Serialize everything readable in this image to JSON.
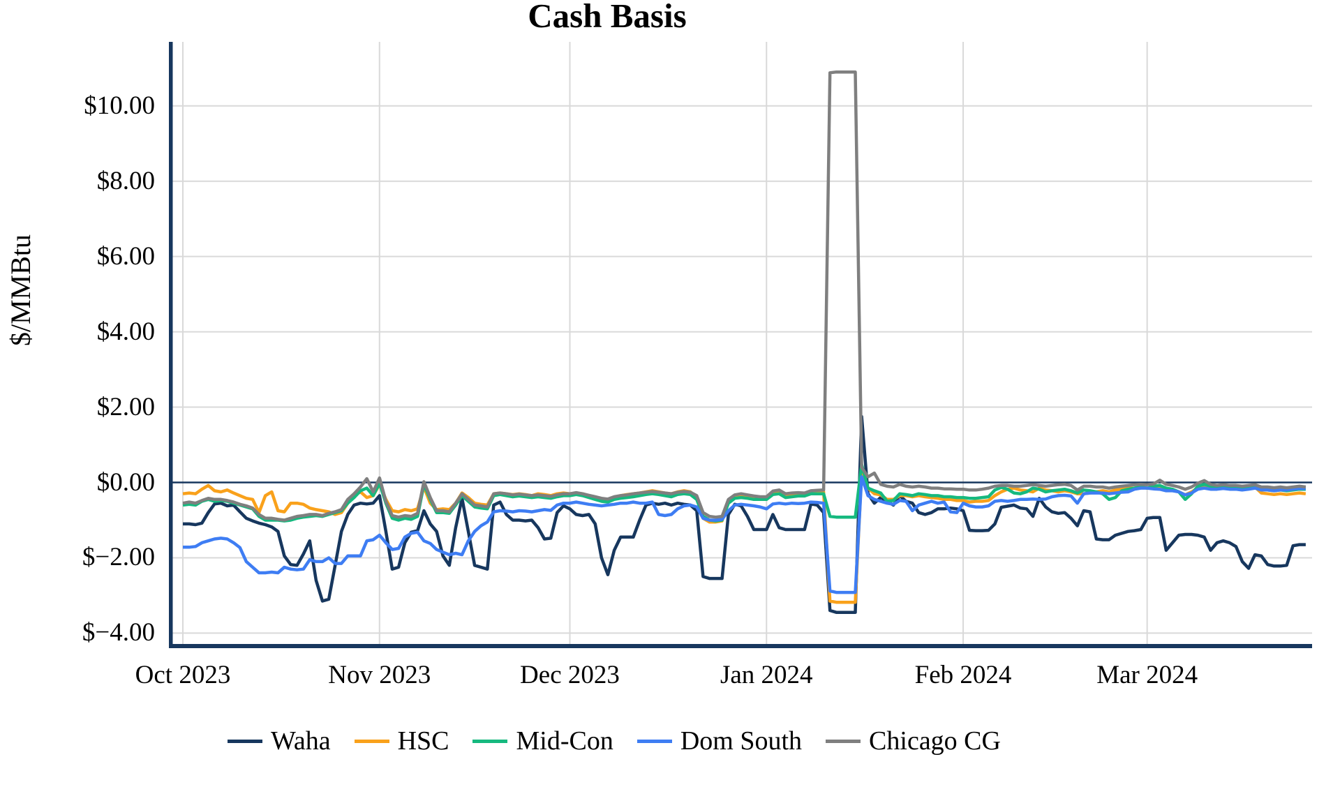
{
  "chart_data": {
    "type": "line",
    "title": "Cash Basis",
    "ylabel": "$/MMBtu",
    "xlabel": "",
    "grid": true,
    "legend_position": "bottom",
    "ylim": [
      -4.4,
      11.7
    ],
    "x_domain_days": [
      -2.2,
      178
    ],
    "x_start": "2023-10-01",
    "x_frequency": "daily",
    "background": "#ffffff",
    "gridline_color": "#d9d9d9",
    "axis_color": "#17375e",
    "zero_line": {
      "value": 0,
      "color": "#17375e"
    },
    "y_ticks": [
      {
        "value": -4,
        "label": "$−4.00"
      },
      {
        "value": -2,
        "label": "$−2.00"
      },
      {
        "value": 0,
        "label": "$0.00"
      },
      {
        "value": 2,
        "label": "$2.00"
      },
      {
        "value": 4,
        "label": "$4.00"
      },
      {
        "value": 6,
        "label": "$6.00"
      },
      {
        "value": 8,
        "label": "$8.00"
      },
      {
        "value": 10,
        "label": "$10.00"
      }
    ],
    "x_ticks": [
      {
        "day": 0,
        "label": "Oct 2023"
      },
      {
        "day": 31,
        "label": "Nov 2023"
      },
      {
        "day": 61,
        "label": "Dec 2023"
      },
      {
        "day": 92,
        "label": "Jan 2024"
      },
      {
        "day": 123,
        "label": "Feb 2024"
      },
      {
        "day": 152,
        "label": "Mar 2024"
      }
    ],
    "series": [
      {
        "name": "Waha",
        "color": "#17375e",
        "values": [
          -1.1,
          -1.1,
          -1.12,
          -1.08,
          -0.8,
          -0.57,
          -0.55,
          -0.62,
          -0.6,
          -0.78,
          -0.95,
          -1.02,
          -1.08,
          -1.12,
          -1.18,
          -1.3,
          -1.95,
          -2.18,
          -2.2,
          -1.9,
          -1.55,
          -2.6,
          -3.15,
          -3.1,
          -2.2,
          -1.3,
          -0.85,
          -0.6,
          -0.55,
          -0.57,
          -0.55,
          -0.35,
          -1.3,
          -2.3,
          -2.25,
          -1.6,
          -1.32,
          -1.28,
          -0.75,
          -1.1,
          -1.3,
          -1.95,
          -2.2,
          -1.2,
          -0.42,
          -1.3,
          -2.2,
          -2.25,
          -2.3,
          -0.6,
          -0.52,
          -0.85,
          -1.0,
          -1.0,
          -1.02,
          -1.0,
          -1.2,
          -1.5,
          -1.48,
          -0.8,
          -0.62,
          -0.7,
          -0.85,
          -0.88,
          -0.85,
          -1.1,
          -2.0,
          -2.45,
          -1.8,
          -1.45,
          -1.45,
          -1.45,
          -1.0,
          -0.6,
          -0.55,
          -0.58,
          -0.55,
          -0.6,
          -0.55,
          -0.58,
          -0.6,
          -0.75,
          -2.5,
          -2.55,
          -2.55,
          -2.55,
          -0.85,
          -0.58,
          -0.62,
          -0.9,
          -1.25,
          -1.25,
          -1.25,
          -0.85,
          -1.2,
          -1.25,
          -1.25,
          -1.25,
          -1.25,
          -0.57,
          -0.6,
          -0.8,
          -3.4,
          -3.45,
          -3.45,
          -3.45,
          -3.45,
          1.75,
          -0.3,
          -0.55,
          -0.4,
          -0.5,
          -0.6,
          -0.35,
          -0.5,
          -0.55,
          -0.8,
          -0.85,
          -0.8,
          -0.7,
          -0.7,
          -0.68,
          -0.7,
          -0.75,
          -1.27,
          -1.28,
          -1.28,
          -1.27,
          -1.1,
          -0.66,
          -0.63,
          -0.6,
          -0.68,
          -0.7,
          -0.9,
          -0.42,
          -0.65,
          -0.78,
          -0.82,
          -0.8,
          -0.95,
          -1.15,
          -0.75,
          -0.78,
          -1.5,
          -1.52,
          -1.52,
          -1.4,
          -1.35,
          -1.3,
          -1.28,
          -1.25,
          -0.95,
          -0.93,
          -0.93,
          -1.8,
          -1.6,
          -1.4,
          -1.38,
          -1.38,
          -1.4,
          -1.45,
          -1.8,
          -1.6,
          -1.55,
          -1.6,
          -1.7,
          -2.1,
          -2.28,
          -1.92,
          -1.95,
          -2.18,
          -2.22,
          -2.22,
          -2.2,
          -1.68,
          -1.65,
          -1.65
        ]
      },
      {
        "name": "HSC",
        "color": "#f9a11b",
        "values": [
          -0.3,
          -0.28,
          -0.3,
          -0.18,
          -0.08,
          -0.22,
          -0.25,
          -0.2,
          -0.28,
          -0.35,
          -0.42,
          -0.45,
          -0.8,
          -0.35,
          -0.25,
          -0.75,
          -0.78,
          -0.55,
          -0.55,
          -0.58,
          -0.68,
          -0.72,
          -0.75,
          -0.78,
          -0.85,
          -0.8,
          -0.55,
          -0.35,
          -0.25,
          -0.4,
          -0.35,
          -0.05,
          -0.45,
          -0.75,
          -0.78,
          -0.72,
          -0.75,
          -0.7,
          -0.12,
          -0.55,
          -0.72,
          -0.7,
          -0.72,
          -0.55,
          -0.28,
          -0.4,
          -0.55,
          -0.58,
          -0.6,
          -0.3,
          -0.28,
          -0.3,
          -0.32,
          -0.3,
          -0.32,
          -0.35,
          -0.3,
          -0.32,
          -0.35,
          -0.3,
          -0.28,
          -0.3,
          -0.28,
          -0.3,
          -0.35,
          -0.4,
          -0.45,
          -0.48,
          -0.4,
          -0.35,
          -0.32,
          -0.3,
          -0.28,
          -0.25,
          -0.22,
          -0.25,
          -0.28,
          -0.3,
          -0.25,
          -0.22,
          -0.25,
          -0.4,
          -0.95,
          -1.05,
          -1.05,
          -1.02,
          -0.5,
          -0.35,
          -0.32,
          -0.38,
          -0.4,
          -0.42,
          -0.42,
          -0.27,
          -0.25,
          -0.37,
          -0.35,
          -0.33,
          -0.33,
          -0.25,
          -0.25,
          -0.25,
          -3.15,
          -3.18,
          -3.18,
          -3.18,
          -3.18,
          0.3,
          -0.15,
          -0.3,
          -0.33,
          -0.45,
          -0.45,
          -0.35,
          -0.35,
          -0.38,
          -0.35,
          -0.38,
          -0.4,
          -0.42,
          -0.45,
          -0.45,
          -0.48,
          -0.48,
          -0.52,
          -0.5,
          -0.5,
          -0.48,
          -0.35,
          -0.25,
          -0.18,
          -0.15,
          -0.2,
          -0.22,
          -0.25,
          -0.15,
          -0.2,
          -0.22,
          -0.25,
          -0.22,
          -0.25,
          -0.3,
          -0.3,
          -0.28,
          -0.25,
          -0.22,
          -0.25,
          -0.2,
          -0.18,
          -0.15,
          -0.15,
          -0.12,
          -0.15,
          -0.12,
          -0.1,
          -0.18,
          -0.2,
          -0.25,
          -0.33,
          -0.25,
          -0.15,
          -0.12,
          -0.15,
          -0.15,
          -0.12,
          -0.15,
          -0.15,
          -0.18,
          -0.15,
          -0.12,
          -0.28,
          -0.3,
          -0.32,
          -0.3,
          -0.32,
          -0.3,
          -0.28,
          -0.3
        ]
      },
      {
        "name": "Mid-Con",
        "color": "#16b97f",
        "values": [
          -0.6,
          -0.58,
          -0.6,
          -0.5,
          -0.45,
          -0.5,
          -0.48,
          -0.5,
          -0.55,
          -0.6,
          -0.65,
          -0.7,
          -0.9,
          -1.0,
          -1.0,
          -1.0,
          -1.02,
          -1.0,
          -0.95,
          -0.92,
          -0.9,
          -0.88,
          -0.9,
          -0.85,
          -0.8,
          -0.75,
          -0.55,
          -0.4,
          -0.22,
          -0.15,
          -0.35,
          -0.02,
          -0.55,
          -0.95,
          -1.0,
          -0.95,
          -0.98,
          -0.9,
          -0.05,
          -0.45,
          -0.8,
          -0.8,
          -0.82,
          -0.6,
          -0.35,
          -0.5,
          -0.65,
          -0.68,
          -0.7,
          -0.35,
          -0.32,
          -0.35,
          -0.38,
          -0.36,
          -0.38,
          -0.4,
          -0.38,
          -0.4,
          -0.42,
          -0.38,
          -0.35,
          -0.35,
          -0.32,
          -0.35,
          -0.4,
          -0.45,
          -0.5,
          -0.52,
          -0.45,
          -0.42,
          -0.4,
          -0.38,
          -0.35,
          -0.32,
          -0.3,
          -0.32,
          -0.35,
          -0.38,
          -0.32,
          -0.3,
          -0.32,
          -0.45,
          -0.9,
          -1.0,
          -1.02,
          -1.0,
          -0.55,
          -0.42,
          -0.4,
          -0.42,
          -0.45,
          -0.45,
          -0.45,
          -0.32,
          -0.3,
          -0.4,
          -0.38,
          -0.36,
          -0.36,
          -0.3,
          -0.3,
          -0.3,
          -0.9,
          -0.92,
          -0.92,
          -0.92,
          -0.92,
          0.48,
          -0.15,
          -0.22,
          -0.28,
          -0.5,
          -0.48,
          -0.3,
          -0.32,
          -0.35,
          -0.3,
          -0.32,
          -0.35,
          -0.35,
          -0.38,
          -0.38,
          -0.4,
          -0.4,
          -0.42,
          -0.42,
          -0.4,
          -0.38,
          -0.2,
          -0.13,
          -0.18,
          -0.28,
          -0.3,
          -0.25,
          -0.15,
          -0.18,
          -0.25,
          -0.22,
          -0.2,
          -0.18,
          -0.22,
          -0.28,
          -0.2,
          -0.22,
          -0.25,
          -0.3,
          -0.45,
          -0.4,
          -0.22,
          -0.18,
          -0.15,
          -0.12,
          -0.15,
          -0.1,
          -0.08,
          -0.15,
          -0.18,
          -0.25,
          -0.45,
          -0.3,
          -0.1,
          -0.05,
          -0.1,
          -0.12,
          -0.1,
          -0.12,
          -0.12,
          -0.15,
          -0.12,
          -0.1,
          -0.18,
          -0.2,
          -0.22,
          -0.2,
          -0.22,
          -0.2,
          -0.18,
          -0.18
        ]
      },
      {
        "name": "Dom South",
        "color": "#3e7df3",
        "values": [
          -1.72,
          -1.72,
          -1.7,
          -1.6,
          -1.55,
          -1.5,
          -1.48,
          -1.5,
          -1.6,
          -1.73,
          -2.1,
          -2.25,
          -2.4,
          -2.4,
          -2.38,
          -2.4,
          -2.25,
          -2.3,
          -2.32,
          -2.3,
          -2.05,
          -2.1,
          -2.1,
          -2.0,
          -2.15,
          -2.15,
          -1.95,
          -1.95,
          -1.95,
          -1.55,
          -1.52,
          -1.4,
          -1.6,
          -1.78,
          -1.75,
          -1.45,
          -1.35,
          -1.32,
          -1.55,
          -1.62,
          -1.78,
          -1.85,
          -1.92,
          -1.88,
          -1.92,
          -1.55,
          -1.3,
          -1.15,
          -1.05,
          -0.78,
          -0.75,
          -0.76,
          -0.78,
          -0.75,
          -0.76,
          -0.78,
          -0.75,
          -0.72,
          -0.74,
          -0.6,
          -0.55,
          -0.55,
          -0.52,
          -0.55,
          -0.58,
          -0.6,
          -0.62,
          -0.6,
          -0.58,
          -0.55,
          -0.55,
          -0.52,
          -0.55,
          -0.55,
          -0.52,
          -0.85,
          -0.88,
          -0.85,
          -0.7,
          -0.62,
          -0.6,
          -0.65,
          -0.95,
          -1.0,
          -1.0,
          -0.98,
          -0.75,
          -0.6,
          -0.58,
          -0.6,
          -0.62,
          -0.65,
          -0.7,
          -0.57,
          -0.55,
          -0.57,
          -0.55,
          -0.56,
          -0.55,
          -0.52,
          -0.53,
          -0.55,
          -2.88,
          -2.92,
          -2.92,
          -2.92,
          -2.92,
          0.15,
          -0.35,
          -0.45,
          -0.5,
          -0.55,
          -0.58,
          -0.48,
          -0.5,
          -0.75,
          -0.6,
          -0.55,
          -0.5,
          -0.55,
          -0.52,
          -0.78,
          -0.8,
          -0.55,
          -0.62,
          -0.65,
          -0.65,
          -0.62,
          -0.5,
          -0.48,
          -0.5,
          -0.48,
          -0.45,
          -0.45,
          -0.44,
          -0.45,
          -0.44,
          -0.38,
          -0.35,
          -0.34,
          -0.36,
          -0.55,
          -0.3,
          -0.28,
          -0.28,
          -0.28,
          -0.3,
          -0.28,
          -0.26,
          -0.25,
          -0.18,
          -0.15,
          -0.15,
          -0.17,
          -0.18,
          -0.22,
          -0.22,
          -0.25,
          -0.33,
          -0.28,
          -0.18,
          -0.15,
          -0.18,
          -0.18,
          -0.16,
          -0.18,
          -0.18,
          -0.2,
          -0.18,
          -0.15,
          -0.2,
          -0.2,
          -0.22,
          -0.2,
          -0.2,
          -0.18,
          -0.16,
          -0.16
        ]
      },
      {
        "name": "Chicago CG",
        "color": "#7f7f7f",
        "values": [
          -0.55,
          -0.52,
          -0.55,
          -0.48,
          -0.42,
          -0.45,
          -0.45,
          -0.48,
          -0.52,
          -0.58,
          -0.62,
          -0.68,
          -0.85,
          -0.95,
          -0.95,
          -0.98,
          -1.0,
          -0.95,
          -0.9,
          -0.88,
          -0.85,
          -0.85,
          -0.88,
          -0.82,
          -0.78,
          -0.72,
          -0.45,
          -0.3,
          -0.12,
          0.1,
          -0.25,
          0.12,
          -0.5,
          -0.88,
          -0.92,
          -0.88,
          -0.9,
          -0.82,
          0.02,
          -0.4,
          -0.75,
          -0.75,
          -0.78,
          -0.55,
          -0.3,
          -0.45,
          -0.6,
          -0.62,
          -0.65,
          -0.3,
          -0.28,
          -0.3,
          -0.33,
          -0.31,
          -0.33,
          -0.35,
          -0.33,
          -0.35,
          -0.37,
          -0.33,
          -0.3,
          -0.3,
          -0.27,
          -0.3,
          -0.34,
          -0.38,
          -0.42,
          -0.44,
          -0.38,
          -0.35,
          -0.33,
          -0.3,
          -0.28,
          -0.26,
          -0.24,
          -0.26,
          -0.28,
          -0.3,
          -0.26,
          -0.24,
          -0.26,
          -0.35,
          -0.8,
          -0.9,
          -0.92,
          -0.9,
          -0.45,
          -0.33,
          -0.3,
          -0.33,
          -0.36,
          -0.38,
          -0.38,
          -0.23,
          -0.2,
          -0.3,
          -0.28,
          -0.27,
          -0.28,
          -0.22,
          -0.21,
          -0.2,
          10.88,
          10.9,
          10.9,
          10.9,
          10.9,
          0.4,
          0.15,
          0.25,
          -0.05,
          -0.1,
          -0.12,
          -0.05,
          -0.1,
          -0.12,
          -0.1,
          -0.12,
          -0.15,
          -0.15,
          -0.17,
          -0.17,
          -0.18,
          -0.18,
          -0.2,
          -0.2,
          -0.18,
          -0.15,
          -0.1,
          -0.08,
          -0.08,
          -0.1,
          -0.1,
          -0.08,
          -0.06,
          -0.08,
          -0.1,
          -0.08,
          -0.06,
          -0.05,
          -0.08,
          -0.2,
          -0.1,
          -0.1,
          -0.12,
          -0.12,
          -0.15,
          -0.12,
          -0.1,
          -0.08,
          -0.06,
          -0.05,
          -0.06,
          -0.04,
          0.06,
          -0.05,
          -0.08,
          -0.12,
          -0.18,
          -0.12,
          -0.02,
          0.05,
          -0.05,
          -0.08,
          -0.06,
          -0.08,
          -0.08,
          -0.1,
          -0.08,
          -0.06,
          -0.12,
          -0.12,
          -0.14,
          -0.12,
          -0.14,
          -0.12,
          -0.1,
          -0.12
        ]
      }
    ]
  }
}
